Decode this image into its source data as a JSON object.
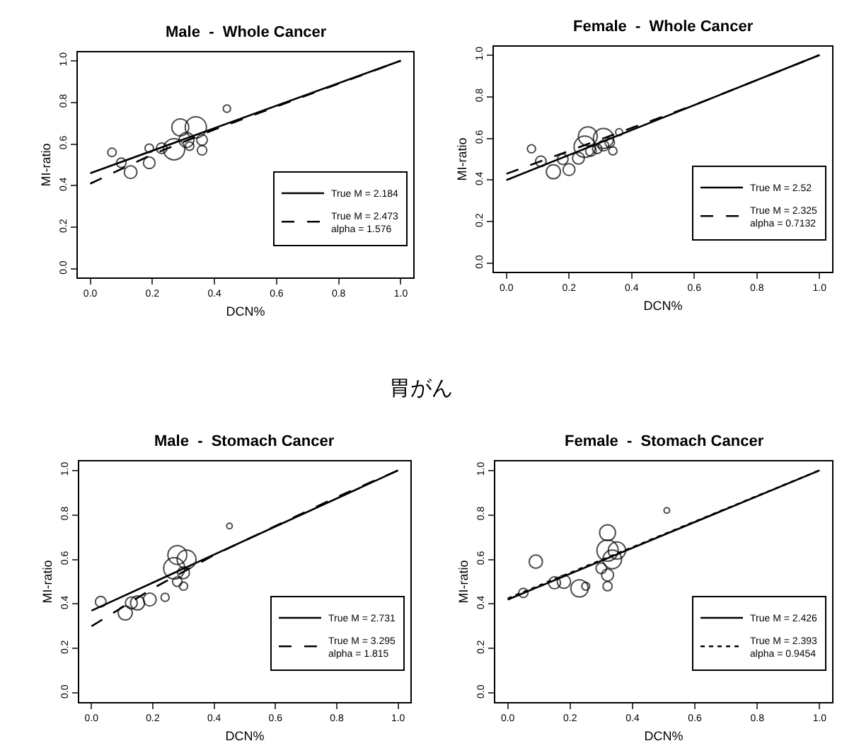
{
  "chart_data": [
    {
      "type": "bubble",
      "title": "Male  -  Whole Cancer",
      "xlabel": "DCN%",
      "ylabel": "MI-ratio",
      "xlim": [
        -0.04,
        1.04
      ],
      "ylim": [
        -0.04,
        1.04
      ],
      "xticks": [
        {
          "value": 0,
          "label": "0.0"
        },
        {
          "value": 0.2,
          "label": "0.2"
        },
        {
          "value": 0.4,
          "label": "0.4"
        },
        {
          "value": 0.6,
          "label": "0.6"
        },
        {
          "value": 0.8,
          "label": "0.8"
        },
        {
          "value": 1,
          "label": "1.0"
        }
      ],
      "yticks": [
        {
          "value": 0,
          "label": "0.0"
        },
        {
          "value": 0.2,
          "label": "0.2"
        },
        {
          "value": 0.4,
          "label": "0.4"
        },
        {
          "value": 0.6,
          "label": "0.6"
        },
        {
          "value": 0.8,
          "label": "0.8"
        },
        {
          "value": 1,
          "label": "1.0"
        }
      ],
      "legend": "bottom right",
      "series": [
        {
          "color": "#000000",
          "marker": "circle",
          "x": [
            0.07,
            0.1,
            0.13,
            0.19,
            0.19,
            0.23,
            0.27,
            0.29,
            0.34,
            0.32,
            0.36,
            0.36,
            0.44,
            0.31
          ],
          "values": [
            0.56,
            0.51,
            0.465,
            0.51,
            0.58,
            0.58,
            0.575,
            0.68,
            0.68,
            0.59,
            0.62,
            0.57,
            0.77,
            0.62
          ],
          "sizes": [
            0.16,
            0.2,
            0.36,
            0.3,
            0.16,
            0.25,
            1,
            0.64,
            1,
            0.16,
            0.25,
            0.2,
            0.12,
            0.49
          ]
        },
        {
          "type": "line",
          "name": "True M = 2.184",
          "color": "#000000",
          "line_style": "solid",
          "marker": "none",
          "x": [
            0,
            1
          ],
          "values": [
            0.46,
            1.0
          ]
        },
        {
          "type": "line",
          "name": "True M = 2.473\nalpha = 1.576",
          "color": "#000000",
          "line_style": "dashed",
          "marker": "none",
          "x": [
            0,
            0.2,
            0.4,
            0.6,
            0.8,
            1
          ],
          "values": [
            0.41,
            0.55,
            0.67,
            0.78,
            0.89,
            1.0
          ]
        }
      ]
    },
    {
      "type": "bubble",
      "title": "Female  -  Whole Cancer",
      "xlabel": "DCN%",
      "ylabel": "MI-ratio",
      "xlim": [
        -0.04,
        1.04
      ],
      "ylim": [
        -0.04,
        1.04
      ],
      "xticks": [
        {
          "value": 0,
          "label": "0.0"
        },
        {
          "value": 0.2,
          "label": "0.2"
        },
        {
          "value": 0.4,
          "label": "0.4"
        },
        {
          "value": 0.6,
          "label": "0.6"
        },
        {
          "value": 0.8,
          "label": "0.8"
        },
        {
          "value": 1,
          "label": "1.0"
        }
      ],
      "yticks": [
        {
          "value": 0,
          "label": "0.0"
        },
        {
          "value": 0.2,
          "label": "0.2"
        },
        {
          "value": 0.4,
          "label": "0.4"
        },
        {
          "value": 0.6,
          "label": "0.6"
        },
        {
          "value": 0.8,
          "label": "0.8"
        },
        {
          "value": 1,
          "label": "1.0"
        }
      ],
      "legend": "bottom right",
      "series": [
        {
          "color": "#000000",
          "marker": "circle",
          "x": [
            0.08,
            0.11,
            0.15,
            0.18,
            0.2,
            0.23,
            0.26,
            0.25,
            0.31,
            0.29,
            0.31,
            0.34,
            0.33,
            0.36,
            0.27
          ],
          "values": [
            0.55,
            0.49,
            0.44,
            0.5,
            0.45,
            0.505,
            0.61,
            0.56,
            0.6,
            0.55,
            0.565,
            0.54,
            0.58,
            0.63,
            0.54
          ],
          "sizes": [
            0.15,
            0.25,
            0.44,
            0.25,
            0.31,
            0.31,
            0.79,
            1,
            0.89,
            0.2,
            0.25,
            0.15,
            0.2,
            0.11,
            0.25
          ]
        },
        {
          "type": "line",
          "name": "True M = 2.52",
          "color": "#000000",
          "line_style": "solid",
          "marker": "none",
          "x": [
            0,
            1
          ],
          "values": [
            0.4,
            1.0
          ]
        },
        {
          "type": "line",
          "name": "True M = 2.325\nalpha = 0.7132",
          "color": "#000000",
          "line_style": "dashed",
          "marker": "none",
          "x": [
            0,
            0.2,
            0.4,
            0.6,
            0.8,
            1
          ],
          "values": [
            0.43,
            0.54,
            0.65,
            0.76,
            0.88,
            1.0
          ]
        }
      ]
    },
    {
      "type": "bubble",
      "title": "Male  -  Stomach Cancer",
      "xlabel": "DCN%",
      "ylabel": "MI-ratio",
      "xlim": [
        -0.04,
        1.04
      ],
      "ylim": [
        -0.04,
        1.04
      ],
      "annotations": [
        "胃がん"
      ],
      "xticks": [
        {
          "value": 0,
          "label": "0.0"
        },
        {
          "value": 0.2,
          "label": "0.2"
        },
        {
          "value": 0.4,
          "label": "0.4"
        },
        {
          "value": 0.6,
          "label": "0.6"
        },
        {
          "value": 0.8,
          "label": "0.8"
        },
        {
          "value": 1,
          "label": "1.0"
        }
      ],
      "yticks": [
        {
          "value": 0,
          "label": "0.0"
        },
        {
          "value": 0.2,
          "label": "0.2"
        },
        {
          "value": 0.4,
          "label": "0.4"
        },
        {
          "value": 0.6,
          "label": "0.6"
        },
        {
          "value": 0.8,
          "label": "0.8"
        },
        {
          "value": 1,
          "label": "1.0"
        }
      ],
      "legend": "bottom right",
      "series": [
        {
          "color": "#000000",
          "marker": "circle",
          "x": [
            0.03,
            0.11,
            0.15,
            0.19,
            0.24,
            0.28,
            0.27,
            0.31,
            0.3,
            0.28,
            0.3,
            0.45,
            0.13
          ],
          "values": [
            0.41,
            0.36,
            0.405,
            0.42,
            0.43,
            0.62,
            0.56,
            0.6,
            0.54,
            0.5,
            0.48,
            0.75,
            0.405
          ],
          "sizes": [
            0.25,
            0.44,
            0.44,
            0.37,
            0.15,
            0.79,
            1,
            0.79,
            0.31,
            0.2,
            0.15,
            0.07,
            0.31
          ]
        },
        {
          "type": "line",
          "name": "True M = 2.731",
          "color": "#000000",
          "line_style": "solid",
          "marker": "none",
          "x": [
            0,
            1
          ],
          "values": [
            0.37,
            1.0
          ]
        },
        {
          "type": "line",
          "name": "True M = 3.295\nalpha = 1.815",
          "color": "#000000",
          "line_style": "dashed",
          "marker": "none",
          "x": [
            0,
            0.2,
            0.4,
            0.6,
            0.8,
            1
          ],
          "values": [
            0.3,
            0.47,
            0.62,
            0.75,
            0.88,
            1.0
          ]
        }
      ]
    },
    {
      "type": "bubble",
      "title": "Female  -  Stomach Cancer",
      "xlabel": "DCN%",
      "ylabel": "MI-ratio",
      "xlim": [
        -0.04,
        1.04
      ],
      "ylim": [
        -0.04,
        1.04
      ],
      "xticks": [
        {
          "value": 0,
          "label": "0.0"
        },
        {
          "value": 0.2,
          "label": "0.2"
        },
        {
          "value": 0.4,
          "label": "0.4"
        },
        {
          "value": 0.6,
          "label": "0.6"
        },
        {
          "value": 0.8,
          "label": "0.8"
        },
        {
          "value": 1,
          "label": "1.0"
        }
      ],
      "yticks": [
        {
          "value": 0,
          "label": "0.0"
        },
        {
          "value": 0.2,
          "label": "0.2"
        },
        {
          "value": 0.4,
          "label": "0.4"
        },
        {
          "value": 0.6,
          "label": "0.6"
        },
        {
          "value": 0.8,
          "label": "0.8"
        },
        {
          "value": 1,
          "label": "1.0"
        }
      ],
      "legend": "bottom right",
      "series": [
        {
          "color": "#000000",
          "marker": "circle",
          "x": [
            0.05,
            0.09,
            0.15,
            0.18,
            0.23,
            0.25,
            0.32,
            0.32,
            0.35,
            0.335,
            0.3,
            0.32,
            0.32,
            0.51
          ],
          "values": [
            0.45,
            0.59,
            0.495,
            0.5,
            0.47,
            0.48,
            0.72,
            0.64,
            0.64,
            0.6,
            0.56,
            0.53,
            0.48,
            0.82
          ],
          "sizes": [
            0.19,
            0.39,
            0.32,
            0.39,
            0.66,
            0.14,
            0.56,
            1,
            0.66,
            0.77,
            0.25,
            0.32,
            0.19,
            0.07
          ]
        },
        {
          "type": "line",
          "name": "True M = 2.426",
          "color": "#000000",
          "line_style": "solid",
          "marker": "none",
          "x": [
            0,
            1
          ],
          "values": [
            0.42,
            1.0
          ]
        },
        {
          "type": "line",
          "name": "True M = 2.393\nalpha = 0.9454",
          "color": "#000000",
          "line_style": "dotted",
          "marker": "none",
          "x": [
            0,
            0.2,
            0.4,
            0.6,
            0.8,
            1
          ],
          "values": [
            0.425,
            0.54,
            0.655,
            0.77,
            0.885,
            1.0
          ]
        }
      ]
    }
  ]
}
